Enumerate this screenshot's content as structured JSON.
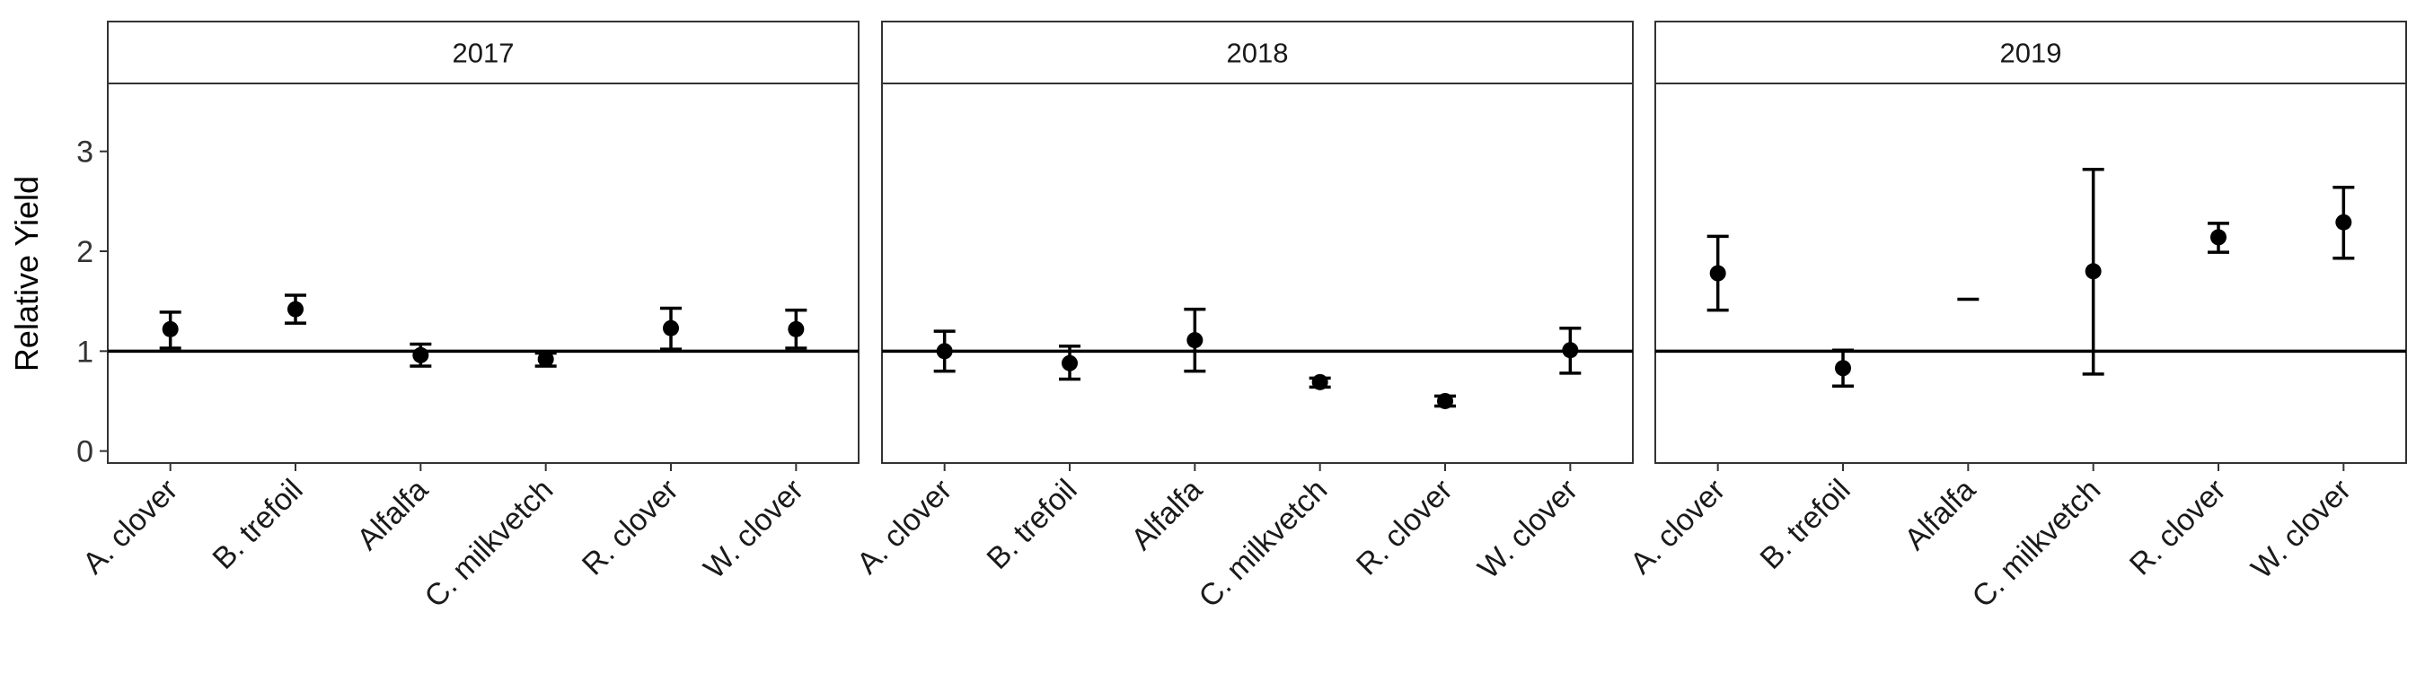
{
  "chart_data": {
    "type": "scatter",
    "ylabel": "Relative Yield",
    "xlabel": "",
    "ylim": [
      -0.12,
      3.68
    ],
    "yticks": [
      0,
      1,
      2,
      3
    ],
    "reference_line": 1,
    "grid": false,
    "categories": [
      "A. clover",
      "B. trefoil",
      "Alfalfa",
      "C. milkvetch",
      "R. clover",
      "W. clover"
    ],
    "facets": [
      {
        "label": "2017",
        "points": [
          {
            "category": "A. clover",
            "y": 1.22,
            "lower": 1.03,
            "upper": 1.39
          },
          {
            "category": "B. trefoil",
            "y": 1.42,
            "lower": 1.28,
            "upper": 1.56
          },
          {
            "category": "Alfalfa",
            "y": 0.96,
            "lower": 0.85,
            "upper": 1.07
          },
          {
            "category": "C. milkvetch",
            "y": 0.92,
            "lower": 0.85,
            "upper": 0.98
          },
          {
            "category": "R. clover",
            "y": 1.23,
            "lower": 1.02,
            "upper": 1.43
          },
          {
            "category": "W. clover",
            "y": 1.22,
            "lower": 1.03,
            "upper": 1.41
          }
        ]
      },
      {
        "label": "2018",
        "points": [
          {
            "category": "A. clover",
            "y": 1.0,
            "lower": 0.8,
            "upper": 1.2
          },
          {
            "category": "B. trefoil",
            "y": 0.88,
            "lower": 0.72,
            "upper": 1.05
          },
          {
            "category": "Alfalfa",
            "y": 1.11,
            "lower": 0.8,
            "upper": 1.42
          },
          {
            "category": "C. milkvetch",
            "y": 0.69,
            "lower": 0.64,
            "upper": 0.73
          },
          {
            "category": "R. clover",
            "y": 0.5,
            "lower": 0.45,
            "upper": 0.55
          },
          {
            "category": "W. clover",
            "y": 1.01,
            "lower": 0.78,
            "upper": 1.23
          }
        ]
      },
      {
        "label": "2019",
        "points": [
          {
            "category": "A. clover",
            "y": 1.78,
            "lower": 1.41,
            "upper": 2.15
          },
          {
            "category": "B. trefoil",
            "y": 0.83,
            "lower": 0.65,
            "upper": 1.01
          },
          {
            "category": "Alfalfa",
            "y": null,
            "lower": 1.52,
            "upper": 1.52
          },
          {
            "category": "C. milkvetch",
            "y": 1.8,
            "lower": 0.77,
            "upper": 2.82
          },
          {
            "category": "R. clover",
            "y": 2.14,
            "lower": 1.99,
            "upper": 2.28
          },
          {
            "category": "W. clover",
            "y": 2.29,
            "lower": 1.93,
            "upper": 2.64
          }
        ]
      }
    ]
  }
}
